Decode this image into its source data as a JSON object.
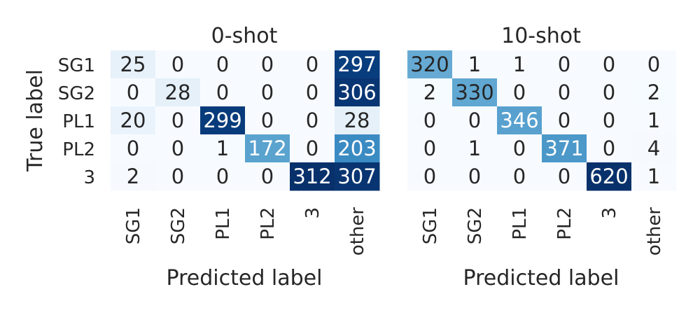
{
  "chart_data": [
    {
      "type": "heatmap",
      "title": "0-shot",
      "xlabel": "Predicted label",
      "ylabel": "True label",
      "rows": [
        "SG1",
        "SG2",
        "PL1",
        "PL2",
        "3"
      ],
      "columns": [
        "SG1",
        "SG2",
        "PL1",
        "PL2",
        "3",
        "other"
      ],
      "values": [
        [
          25,
          0,
          0,
          0,
          0,
          297
        ],
        [
          0,
          28,
          0,
          0,
          0,
          306
        ],
        [
          20,
          0,
          299,
          0,
          0,
          28
        ],
        [
          0,
          0,
          1,
          172,
          0,
          203
        ],
        [
          2,
          0,
          0,
          0,
          312,
          307
        ]
      ],
      "colormap": "Blues",
      "grid": false
    },
    {
      "type": "heatmap",
      "title": "10-shot",
      "xlabel": "Predicted label",
      "ylabel": "",
      "rows": [
        "SG1",
        "SG2",
        "PL1",
        "PL2",
        "3"
      ],
      "columns": [
        "SG1",
        "SG2",
        "PL1",
        "PL2",
        "3",
        "other"
      ],
      "values": [
        [
          320,
          1,
          1,
          0,
          0,
          0
        ],
        [
          2,
          330,
          0,
          0,
          0,
          2
        ],
        [
          0,
          0,
          346,
          0,
          0,
          1
        ],
        [
          0,
          1,
          0,
          371,
          0,
          4
        ],
        [
          0,
          0,
          0,
          0,
          620,
          1
        ]
      ],
      "colormap": "Blues",
      "grid": false
    }
  ]
}
